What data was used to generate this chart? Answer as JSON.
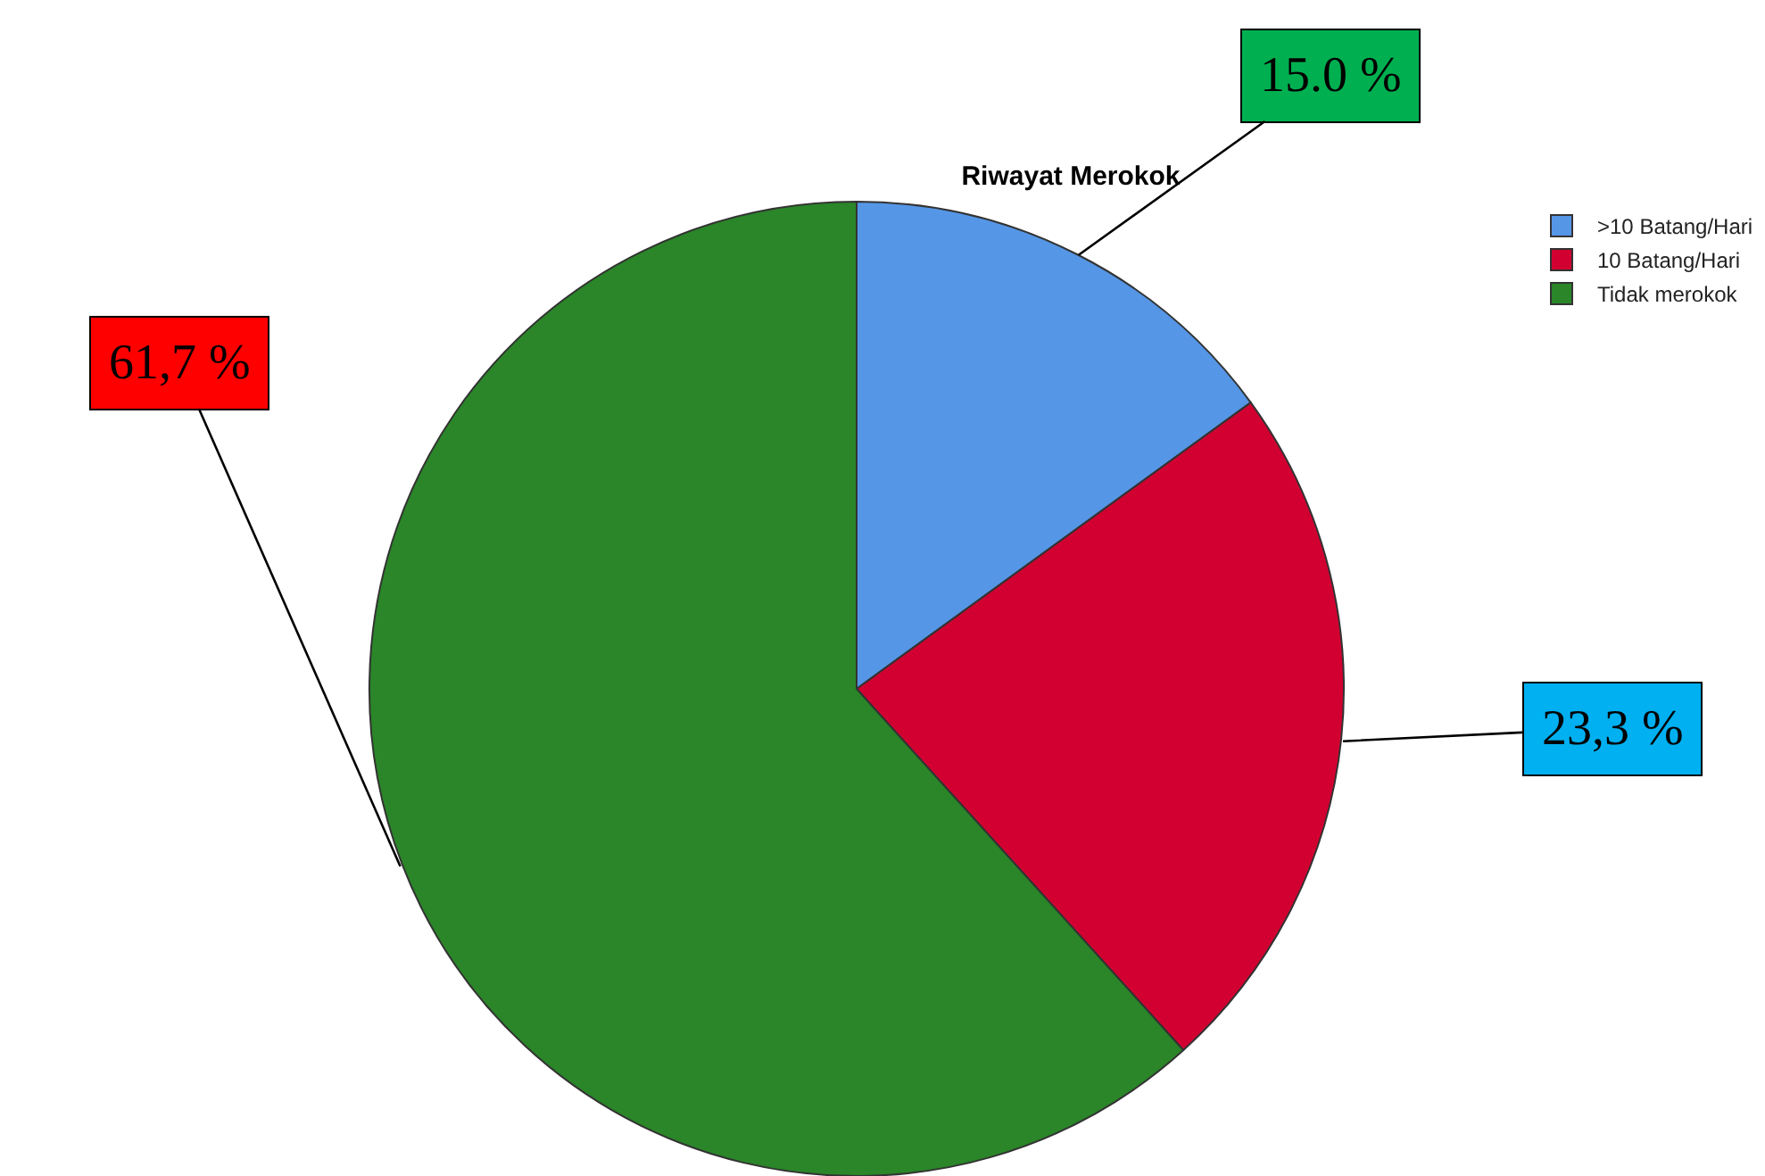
{
  "chart_data": {
    "type": "pie",
    "title": "Riwayat Merokok",
    "categories": [
      ">10 Batang/Hari",
      "10 Batang/Hari",
      "Tidak merokok"
    ],
    "values": [
      15.0,
      23.3,
      61.7
    ],
    "colors": [
      "#5596e6",
      "#d20031",
      "#2a8628"
    ],
    "value_labels": [
      "15.0 %",
      "23,3 %",
      "61,7 %"
    ],
    "legend": "top right"
  }
}
